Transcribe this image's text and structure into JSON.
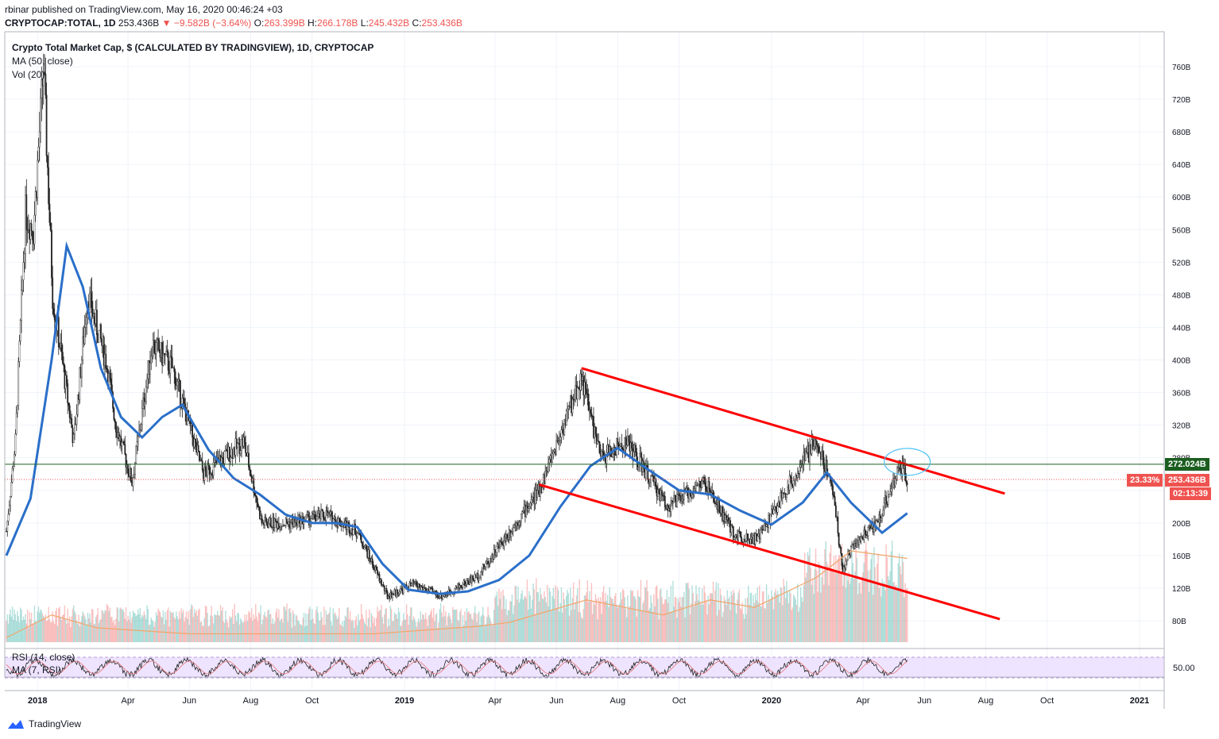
{
  "header": {
    "published": "rbinar published on TradingView.com, May 16, 2020 00:46:24 +03",
    "symbol": "CRYPTOCAP:TOTAL, 1D",
    "last": "253.436B",
    "change": "−9.582B (−3.64%)",
    "open_label": "O:",
    "open": "263.399B",
    "high_label": "H:",
    "high": "266.178B",
    "low_label": "L:",
    "low": "245.432B",
    "close_label": "C:",
    "close": "253.436B"
  },
  "legends": {
    "title": "Crypto Total Market Cap, $ (CALCULATED BY TRADINGVIEW), 1D, CRYPTOCAP",
    "ma": "MA (50, close)",
    "vol": "Vol (20)",
    "rsi": "RSI (14, close)",
    "rsi_ma": "MA (7, RSI)"
  },
  "price_tags": {
    "level": "272.024B",
    "percent": "23.33%",
    "current": "253.436B",
    "countdown": "02:13:39",
    "rsi_value": "50.00"
  },
  "footer": {
    "brand": "TradingView"
  },
  "colors": {
    "up": "#26a69a",
    "down": "#ef5350",
    "candle": "#222222",
    "ma": "#2a6fc9",
    "trend": "#ff0000",
    "level": "#1b5e20",
    "rsi_band": "#e8d9ff",
    "rsi_line": "#6a1b9a",
    "volume_ma": "#f0a66b"
  },
  "chart_data": {
    "type": "candlestick",
    "title": "Crypto Total Market Cap, $ (CALCULATED BY TRADINGVIEW), 1D, CRYPTOCAP",
    "unit": "USD (billions)",
    "ylim": [
      60,
      780
    ],
    "y_ticks": [
      "80B",
      "120B",
      "160B",
      "200B",
      "240B",
      "280B",
      "320B",
      "360B",
      "400B",
      "440B",
      "480B",
      "520B",
      "560B",
      "600B",
      "640B",
      "680B",
      "720B",
      "760B"
    ],
    "x_ticks": [
      "2018",
      "Apr",
      "Jun",
      "Aug",
      "Oct",
      "2019",
      "Apr",
      "Jun",
      "Aug",
      "Oct",
      "2020",
      "Apr",
      "Jun",
      "Aug",
      "Oct",
      "2021"
    ],
    "price_path": [
      {
        "date": "2017-12-01",
        "value": 190
      },
      {
        "date": "2017-12-10",
        "value": 300
      },
      {
        "date": "2017-12-20",
        "value": 580
      },
      {
        "date": "2017-12-28",
        "value": 560
      },
      {
        "date": "2018-01-07",
        "value": 760
      },
      {
        "date": "2018-01-16",
        "value": 480
      },
      {
        "date": "2018-02-06",
        "value": 300
      },
      {
        "date": "2018-02-20",
        "value": 480
      },
      {
        "date": "2018-03-10",
        "value": 400
      },
      {
        "date": "2018-03-20",
        "value": 320
      },
      {
        "date": "2018-04-05",
        "value": 250
      },
      {
        "date": "2018-04-25",
        "value": 420
      },
      {
        "date": "2018-05-15",
        "value": 390
      },
      {
        "date": "2018-06-15",
        "value": 260
      },
      {
        "date": "2018-07-25",
        "value": 300
      },
      {
        "date": "2018-08-12",
        "value": 200
      },
      {
        "date": "2018-09-10",
        "value": 200
      },
      {
        "date": "2018-10-15",
        "value": 210
      },
      {
        "date": "2018-11-15",
        "value": 190
      },
      {
        "date": "2018-12-15",
        "value": 110
      },
      {
        "date": "2019-01-10",
        "value": 125
      },
      {
        "date": "2019-02-07",
        "value": 110
      },
      {
        "date": "2019-03-15",
        "value": 135
      },
      {
        "date": "2019-04-10",
        "value": 180
      },
      {
        "date": "2019-05-15",
        "value": 240
      },
      {
        "date": "2019-06-26",
        "value": 380
      },
      {
        "date": "2019-07-15",
        "value": 280
      },
      {
        "date": "2019-08-10",
        "value": 300
      },
      {
        "date": "2019-09-20",
        "value": 220
      },
      {
        "date": "2019-10-26",
        "value": 250
      },
      {
        "date": "2019-11-25",
        "value": 185
      },
      {
        "date": "2019-12-18",
        "value": 180
      },
      {
        "date": "2020-01-20",
        "value": 250
      },
      {
        "date": "2020-02-14",
        "value": 300
      },
      {
        "date": "2020-03-01",
        "value": 250
      },
      {
        "date": "2020-03-12",
        "value": 140
      },
      {
        "date": "2020-03-20",
        "value": 170
      },
      {
        "date": "2020-04-15",
        "value": 200
      },
      {
        "date": "2020-05-08",
        "value": 270
      },
      {
        "date": "2020-05-15",
        "value": 253
      }
    ],
    "series": [
      {
        "name": "MA (50, close)",
        "points": [
          {
            "date": "2017-12-01",
            "value": 160
          },
          {
            "date": "2017-12-25",
            "value": 230
          },
          {
            "date": "2018-01-15",
            "value": 400
          },
          {
            "date": "2018-01-30",
            "value": 540
          },
          {
            "date": "2018-02-15",
            "value": 490
          },
          {
            "date": "2018-03-05",
            "value": 390
          },
          {
            "date": "2018-03-25",
            "value": 330
          },
          {
            "date": "2018-04-15",
            "value": 305
          },
          {
            "date": "2018-05-05",
            "value": 330
          },
          {
            "date": "2018-05-25",
            "value": 345
          },
          {
            "date": "2018-06-20",
            "value": 290
          },
          {
            "date": "2018-07-15",
            "value": 255
          },
          {
            "date": "2018-08-10",
            "value": 235
          },
          {
            "date": "2018-09-05",
            "value": 210
          },
          {
            "date": "2018-10-01",
            "value": 200
          },
          {
            "date": "2018-10-25",
            "value": 200
          },
          {
            "date": "2018-11-15",
            "value": 195
          },
          {
            "date": "2018-12-10",
            "value": 150
          },
          {
            "date": "2019-01-05",
            "value": 118
          },
          {
            "date": "2019-02-05",
            "value": 113
          },
          {
            "date": "2019-03-05",
            "value": 116
          },
          {
            "date": "2019-04-05",
            "value": 130
          },
          {
            "date": "2019-05-05",
            "value": 160
          },
          {
            "date": "2019-06-05",
            "value": 220
          },
          {
            "date": "2019-07-05",
            "value": 270
          },
          {
            "date": "2019-08-01",
            "value": 292
          },
          {
            "date": "2019-09-01",
            "value": 265
          },
          {
            "date": "2019-10-01",
            "value": 240
          },
          {
            "date": "2019-11-01",
            "value": 235
          },
          {
            "date": "2019-12-01",
            "value": 215
          },
          {
            "date": "2020-01-01",
            "value": 198
          },
          {
            "date": "2020-02-01",
            "value": 225
          },
          {
            "date": "2020-02-25",
            "value": 262
          },
          {
            "date": "2020-03-20",
            "value": 225
          },
          {
            "date": "2020-04-20",
            "value": 188
          },
          {
            "date": "2020-05-15",
            "value": 212
          }
        ]
      },
      {
        "name": "Vol (20)",
        "points": [
          {
            "date": "2017-12-01",
            "value": 0.05
          },
          {
            "date": "2018-01-15",
            "value": 0.35
          },
          {
            "date": "2018-03-01",
            "value": 0.18
          },
          {
            "date": "2018-06-01",
            "value": 0.1
          },
          {
            "date": "2018-12-01",
            "value": 0.1
          },
          {
            "date": "2019-03-15",
            "value": 0.2
          },
          {
            "date": "2019-04-15",
            "value": 0.25
          },
          {
            "date": "2019-07-01",
            "value": 0.55
          },
          {
            "date": "2019-09-15",
            "value": 0.35
          },
          {
            "date": "2019-11-01",
            "value": 0.55
          },
          {
            "date": "2019-12-15",
            "value": 0.45
          },
          {
            "date": "2020-02-15",
            "value": 0.85
          },
          {
            "date": "2020-03-20",
            "value": 1.2
          },
          {
            "date": "2020-05-15",
            "value": 1.1
          }
        ]
      }
    ],
    "annotations": [
      {
        "type": "trendline",
        "from": {
          "date": "2019-06-26",
          "value": 390
        },
        "to": {
          "date": "2020-08-20",
          "value": 236
        }
      },
      {
        "type": "trendline",
        "from": {
          "date": "2019-05-15",
          "value": 247
        },
        "to": {
          "date": "2020-08-15",
          "value": 82
        }
      },
      {
        "type": "horizontal",
        "value": 272.024
      },
      {
        "type": "ellipse",
        "center": {
          "date": "2020-05-15",
          "value": 275
        }
      }
    ],
    "rsi": {
      "ylim": [
        0,
        100
      ],
      "band": [
        30,
        70
      ],
      "tick": "50.00"
    }
  }
}
